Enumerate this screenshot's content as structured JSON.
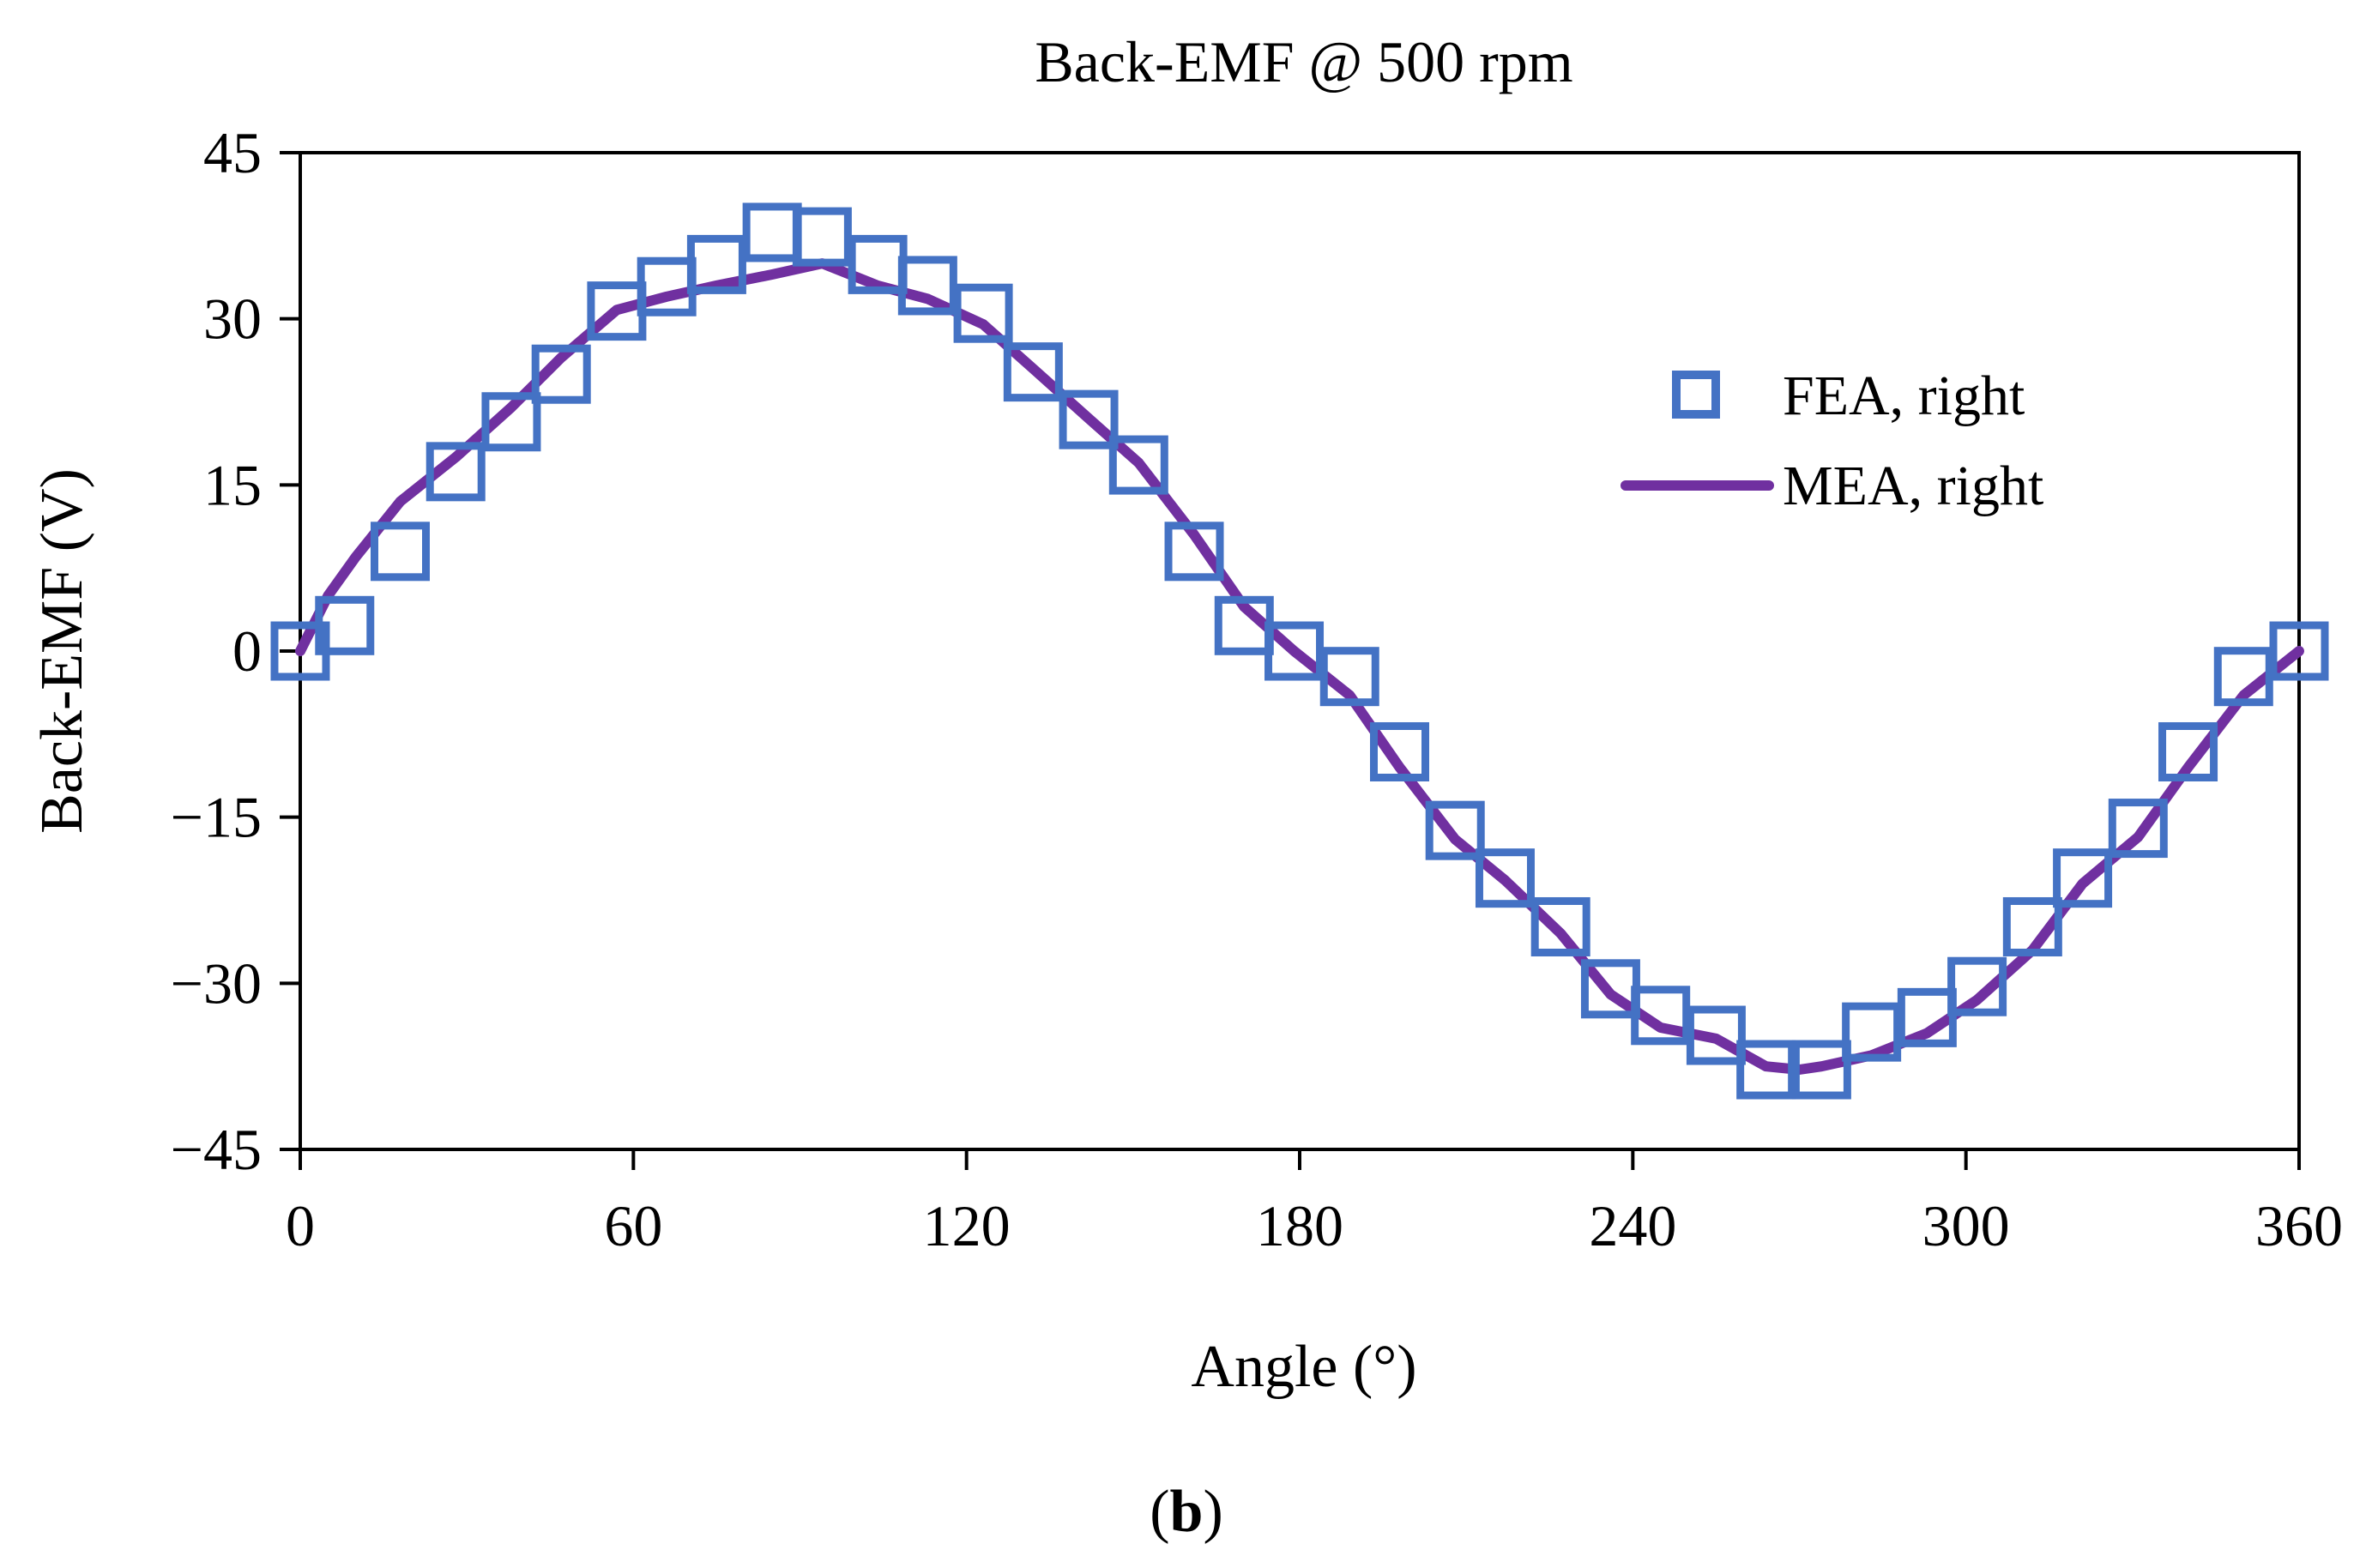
{
  "chart_data": {
    "type": "line",
    "title": "Back-EMF @ 500 rpm",
    "xlabel": "Angle (°)",
    "ylabel": "Back-EMF (V)",
    "xlim": [
      0,
      360
    ],
    "ylim": [
      -45,
      45
    ],
    "x_ticks": [
      "0",
      "60",
      "120",
      "180",
      "240",
      "300",
      "360"
    ],
    "y_ticks": [
      "45",
      "30",
      "15",
      "0",
      "−15",
      "−30",
      "−45"
    ],
    "x_tick_values": [
      0,
      60,
      120,
      180,
      240,
      300,
      360
    ],
    "y_tick_values": [
      45,
      30,
      15,
      0,
      -15,
      -30,
      -45
    ],
    "grid": false,
    "legend_position": "right",
    "series": [
      {
        "name": "FEA, right",
        "style": "markers",
        "marker": "square",
        "color": "#4472C4",
        "x": [
          0,
          8,
          18,
          28,
          38,
          47,
          57,
          66,
          75,
          85,
          94,
          104,
          113,
          123,
          132,
          142,
          151,
          161,
          170,
          179,
          189,
          198,
          208,
          217,
          227,
          236,
          245,
          255,
          264,
          274,
          283,
          293,
          302,
          312,
          321,
          331,
          340,
          350,
          360
        ],
        "y": [
          0,
          2.3,
          9,
          16.2,
          20.7,
          25,
          30.7,
          32.9,
          34.9,
          37.8,
          37.4,
          34.9,
          33,
          30.5,
          25.2,
          20.9,
          16.8,
          9,
          2.3,
          0,
          -2.3,
          -9.1,
          -16.2,
          -20.5,
          -24.9,
          -30.5,
          -32.9,
          -34.7,
          -37.8,
          -37.8,
          -34.4,
          -33.1,
          -30.3,
          -24.9,
          -20.5,
          -16,
          -9.1,
          -2.3,
          0
        ]
      },
      {
        "name": "MEA, right",
        "style": "line",
        "color": "#7030A0",
        "x": [
          0,
          5,
          10,
          18,
          28,
          38,
          47,
          57,
          66,
          75,
          85,
          94,
          104,
          113,
          123,
          132,
          142,
          151,
          161,
          170,
          179,
          189,
          198,
          208,
          217,
          227,
          236,
          245,
          255,
          264,
          270,
          274,
          283,
          293,
          302,
          312,
          321,
          331,
          340,
          350,
          360
        ],
        "y": [
          0,
          5,
          8.5,
          13.5,
          17.5,
          22,
          26.5,
          30.8,
          32,
          33,
          34,
          35,
          33,
          31.8,
          29.5,
          25.5,
          21,
          17,
          10.5,
          4,
          0,
          -4,
          -10.5,
          -17,
          -20.7,
          -25.5,
          -31,
          -34,
          -35,
          -37.5,
          -37.8,
          -37.5,
          -36.5,
          -34.5,
          -31.5,
          -27,
          -21,
          -16.8,
          -10.5,
          -4,
          0
        ]
      }
    ],
    "panel_label": {
      "prefix": "(",
      "letter": "b",
      "suffix": ")"
    }
  }
}
